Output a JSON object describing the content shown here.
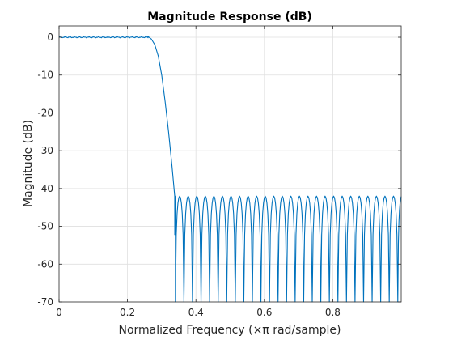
{
  "chart_data": {
    "type": "line",
    "title": "Magnitude Response (dB)",
    "xlabel": "Normalized Frequency (×π rad/sample)",
    "ylabel": "Magnitude (dB)",
    "xlim": [
      0,
      1
    ],
    "ylim": [
      -70,
      3
    ],
    "xticks": [
      0,
      0.2,
      0.4,
      0.6,
      0.8
    ],
    "xtick_labels": [
      "0",
      "0.2",
      "0.4",
      "0.6",
      "0.8"
    ],
    "yticks": [
      0,
      -10,
      -20,
      -30,
      -40,
      -50,
      -60,
      -70
    ],
    "ytick_labels": [
      "0",
      "-10",
      "-20",
      "-30",
      "-40",
      "-50",
      "-60",
      "-70"
    ],
    "grid": true,
    "series": [
      {
        "color": "#0072bd",
        "passband_edge": 0.26,
        "passband_ripple_db": 0.3,
        "transition_points": [
          [
            0.26,
            0.2
          ],
          [
            0.27,
            -0.5
          ],
          [
            0.28,
            -2
          ],
          [
            0.29,
            -5
          ],
          [
            0.3,
            -10
          ],
          [
            0.31,
            -17
          ],
          [
            0.32,
            -25
          ],
          [
            0.33,
            -34
          ],
          [
            0.335,
            -39
          ],
          [
            0.338,
            -42
          ]
        ],
        "stopband_start": 0.338,
        "stopband_peak_db": -42,
        "stopband_nulls": [
          0.34,
          0.365,
          0.39,
          0.415,
          0.44,
          0.465,
          0.49,
          0.515,
          0.54,
          0.565,
          0.59,
          0.615,
          0.64,
          0.665,
          0.69,
          0.715,
          0.74,
          0.765,
          0.79,
          0.815,
          0.84,
          0.865,
          0.89,
          0.915,
          0.94,
          0.965,
          0.99
        ]
      }
    ]
  }
}
